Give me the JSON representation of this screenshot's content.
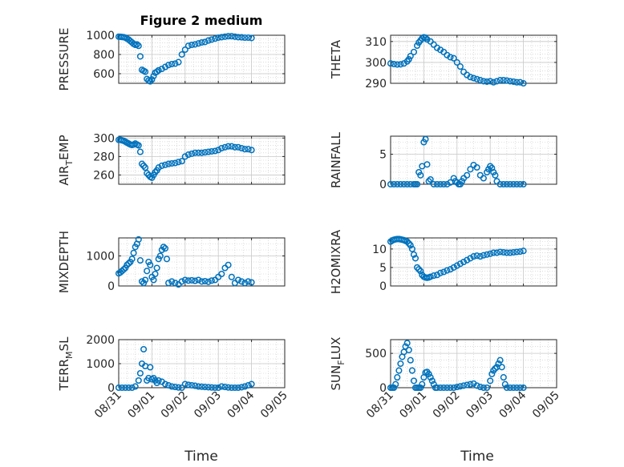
{
  "figure": {
    "title": "Figure 2 medium",
    "xlabel_left": "Time",
    "xlabel_right": "Time"
  },
  "colors": {
    "marker": "#0072BD",
    "axis": "#262626",
    "grid": "#c8c8c8"
  },
  "chart_data": [
    {
      "type": "scatter",
      "ylabel": "PRESSURE",
      "ylabel_parts": [
        "PRESSURE",
        "",
        ""
      ],
      "ylim": [
        500,
        1000
      ],
      "yticks": [
        600,
        800,
        1000
      ],
      "xlim": [
        0,
        5
      ],
      "xticks": [
        "08/31",
        "09/01",
        "09/02",
        "09/03",
        "09/04",
        "09/05"
      ],
      "x": [
        0.0,
        0.05,
        0.1,
        0.15,
        0.2,
        0.25,
        0.3,
        0.35,
        0.4,
        0.45,
        0.5,
        0.55,
        0.6,
        0.65,
        0.7,
        0.75,
        0.8,
        0.85,
        0.9,
        0.95,
        1.0,
        1.05,
        1.1,
        1.15,
        1.2,
        1.3,
        1.4,
        1.5,
        1.6,
        1.7,
        1.8,
        1.9,
        2.0,
        2.1,
        2.2,
        2.3,
        2.4,
        2.5,
        2.6,
        2.7,
        2.8,
        2.9,
        3.0,
        3.1,
        3.2,
        3.3,
        3.4,
        3.5,
        3.6,
        3.7,
        3.8,
        3.9,
        4.0
      ],
      "y": [
        985,
        984,
        982,
        980,
        975,
        965,
        955,
        940,
        925,
        910,
        900,
        905,
        890,
        780,
        640,
        630,
        620,
        545,
        530,
        520,
        540,
        575,
        610,
        620,
        635,
        650,
        670,
        690,
        700,
        705,
        720,
        800,
        850,
        890,
        900,
        905,
        915,
        925,
        930,
        945,
        955,
        965,
        975,
        980,
        985,
        990,
        990,
        985,
        980,
        978,
        975,
        975,
        972
      ]
    },
    {
      "type": "scatter",
      "ylabel": "THETA",
      "ylabel_parts": [
        "THETA",
        "",
        ""
      ],
      "ylim": [
        290,
        313
      ],
      "yticks": [
        290,
        300,
        310
      ],
      "xlim": [
        0,
        5
      ],
      "xticks": [
        "08/31",
        "09/01",
        "09/02",
        "09/03",
        "09/04",
        "09/05"
      ],
      "x": [
        0.0,
        0.1,
        0.2,
        0.3,
        0.4,
        0.5,
        0.55,
        0.6,
        0.7,
        0.8,
        0.85,
        0.9,
        0.95,
        1.0,
        1.05,
        1.1,
        1.2,
        1.3,
        1.4,
        1.5,
        1.6,
        1.7,
        1.8,
        1.9,
        2.0,
        2.1,
        2.2,
        2.3,
        2.4,
        2.5,
        2.6,
        2.7,
        2.8,
        2.9,
        3.0,
        3.1,
        3.2,
        3.3,
        3.4,
        3.5,
        3.6,
        3.7,
        3.8,
        3.9,
        4.0
      ],
      "y": [
        299.5,
        299.2,
        299,
        299.1,
        299.5,
        300.5,
        301.5,
        303,
        305,
        308,
        309.5,
        310.5,
        311.5,
        312,
        311.8,
        311,
        310,
        308.5,
        307,
        306,
        305,
        303.5,
        302.5,
        302,
        300,
        298,
        295.5,
        294,
        293,
        292.5,
        292,
        291.5,
        291,
        290.8,
        291,
        290.5,
        291,
        291.5,
        291.5,
        291.3,
        291,
        290.8,
        290.5,
        290.5,
        290
      ]
    },
    {
      "type": "scatter",
      "ylabel": "AIR_TEMP",
      "ylabel_parts": [
        "AIR",
        "T",
        "EMP"
      ],
      "ylim": [
        250,
        302
      ],
      "yticks": [
        260,
        280,
        300
      ],
      "xlim": [
        0,
        5
      ],
      "xticks": [
        "08/31",
        "09/01",
        "09/02",
        "09/03",
        "09/04",
        "09/05"
      ],
      "x": [
        0.0,
        0.05,
        0.1,
        0.15,
        0.2,
        0.25,
        0.3,
        0.35,
        0.4,
        0.45,
        0.5,
        0.55,
        0.6,
        0.65,
        0.7,
        0.75,
        0.8,
        0.85,
        0.9,
        0.95,
        1.0,
        1.05,
        1.1,
        1.15,
        1.2,
        1.3,
        1.4,
        1.5,
        1.6,
        1.7,
        1.8,
        1.9,
        2.0,
        2.1,
        2.2,
        2.3,
        2.4,
        2.5,
        2.6,
        2.7,
        2.8,
        2.9,
        3.0,
        3.1,
        3.2,
        3.3,
        3.4,
        3.5,
        3.6,
        3.7,
        3.8,
        3.9,
        4.0
      ],
      "y": [
        298,
        298,
        297.5,
        297,
        296,
        295,
        294,
        293,
        292.5,
        293,
        294,
        293,
        292,
        285,
        272,
        270,
        268,
        262,
        260,
        258,
        257,
        260,
        263,
        265,
        268,
        270,
        271,
        272,
        272.5,
        273,
        274,
        275,
        280,
        282,
        283,
        284,
        284,
        284,
        284.5,
        285,
        285.5,
        286,
        287,
        289,
        290,
        291,
        291,
        290,
        290,
        289,
        288,
        288,
        287
      ]
    },
    {
      "type": "scatter",
      "ylabel": "RAINFALL",
      "ylabel_parts": [
        "RAINFALL",
        "",
        ""
      ],
      "ylim": [
        0,
        8
      ],
      "yticks": [
        0,
        5
      ],
      "xlim": [
        0,
        5
      ],
      "xticks": [
        "08/31",
        "09/01",
        "09/02",
        "09/03",
        "09/04",
        "09/05"
      ],
      "x": [
        0.0,
        0.1,
        0.2,
        0.3,
        0.4,
        0.5,
        0.6,
        0.7,
        0.75,
        0.8,
        0.85,
        0.9,
        0.95,
        1.0,
        1.05,
        1.1,
        1.15,
        1.2,
        1.3,
        1.4,
        1.5,
        1.6,
        1.7,
        1.8,
        1.9,
        1.95,
        2.0,
        2.05,
        2.1,
        2.15,
        2.2,
        2.3,
        2.4,
        2.5,
        2.6,
        2.7,
        2.8,
        2.9,
        2.95,
        3.0,
        3.05,
        3.1,
        3.15,
        3.2,
        3.3,
        3.4,
        3.5,
        3.6,
        3.7,
        3.8,
        3.9,
        4.0
      ],
      "y": [
        0,
        0,
        0,
        0,
        0,
        0,
        0,
        0,
        0,
        0,
        2,
        1.5,
        3,
        7,
        7.5,
        3.3,
        0.5,
        0.8,
        0,
        0,
        0,
        0,
        0,
        0.3,
        1,
        0.5,
        0.3,
        0,
        0,
        0.5,
        1,
        1.5,
        2.5,
        3.2,
        2.8,
        1.5,
        1,
        2,
        2.5,
        3,
        2.7,
        2,
        1.5,
        0.5,
        0,
        0,
        0,
        0,
        0,
        0,
        0,
        0
      ]
    },
    {
      "type": "scatter",
      "ylabel": "MIXDEPTH",
      "ylabel_parts": [
        "MIXDEPTH",
        "",
        ""
      ],
      "ylim": [
        0,
        1600
      ],
      "yticks": [
        0,
        1000
      ],
      "xlim": [
        0,
        5
      ],
      "xticks": [
        "08/31",
        "09/01",
        "09/02",
        "09/03",
        "09/04",
        "09/05"
      ],
      "x": [
        0.0,
        0.05,
        0.1,
        0.15,
        0.2,
        0.25,
        0.3,
        0.35,
        0.4,
        0.45,
        0.5,
        0.55,
        0.6,
        0.65,
        0.7,
        0.75,
        0.8,
        0.85,
        0.9,
        0.95,
        1.0,
        1.05,
        1.1,
        1.15,
        1.2,
        1.25,
        1.3,
        1.35,
        1.4,
        1.45,
        1.5,
        1.6,
        1.7,
        1.8,
        1.9,
        2.0,
        2.1,
        2.2,
        2.3,
        2.4,
        2.5,
        2.6,
        2.7,
        2.8,
        2.9,
        3.0,
        3.1,
        3.2,
        3.3,
        3.4,
        3.5,
        3.6,
        3.7,
        3.8,
        3.9,
        4.0
      ],
      "y": [
        420,
        450,
        500,
        550,
        600,
        700,
        750,
        800,
        900,
        1100,
        1300,
        1400,
        1550,
        850,
        150,
        100,
        200,
        500,
        800,
        700,
        300,
        200,
        400,
        600,
        900,
        1000,
        1200,
        1300,
        1250,
        900,
        100,
        150,
        100,
        50,
        150,
        200,
        180,
        190,
        170,
        200,
        150,
        160,
        140,
        180,
        200,
        300,
        400,
        600,
        700,
        300,
        100,
        200,
        150,
        100,
        150,
        120
      ]
    },
    {
      "type": "scatter",
      "ylabel": "H2OMIXRA",
      "ylabel_parts": [
        "H2OMIXRA",
        "",
        ""
      ],
      "ylim": [
        0,
        13
      ],
      "yticks": [
        0,
        5,
        10
      ],
      "xlim": [
        0,
        5
      ],
      "xticks": [
        "08/31",
        "09/01",
        "09/02",
        "09/03",
        "09/04",
        "09/05"
      ],
      "x": [
        0.0,
        0.05,
        0.1,
        0.15,
        0.2,
        0.25,
        0.3,
        0.35,
        0.4,
        0.45,
        0.5,
        0.55,
        0.6,
        0.65,
        0.7,
        0.75,
        0.8,
        0.85,
        0.9,
        0.95,
        1.0,
        1.05,
        1.1,
        1.15,
        1.2,
        1.3,
        1.4,
        1.5,
        1.6,
        1.7,
        1.8,
        1.9,
        2.0,
        2.1,
        2.2,
        2.3,
        2.4,
        2.5,
        2.6,
        2.7,
        2.8,
        2.9,
        3.0,
        3.1,
        3.2,
        3.3,
        3.4,
        3.5,
        3.6,
        3.7,
        3.8,
        3.9,
        4.0
      ],
      "y": [
        12,
        12.3,
        12.5,
        12.6,
        12.7,
        12.7,
        12.6,
        12.5,
        12.4,
        12.2,
        12,
        11.5,
        11,
        10,
        8.5,
        7.5,
        5,
        4.5,
        4,
        3,
        2.5,
        2.3,
        2.2,
        2.3,
        2.5,
        2.8,
        3,
        3.5,
        3.8,
        4.2,
        4.5,
        5,
        5.5,
        6,
        6.5,
        7,
        7.5,
        8,
        8.2,
        8,
        8.3,
        8.5,
        8.7,
        9,
        9,
        9.2,
        9.1,
        9,
        9,
        9.1,
        9.2,
        9.3,
        9.5
      ]
    },
    {
      "type": "scatter",
      "ylabel": "TERR_MSL",
      "ylabel_parts": [
        "TERR",
        "M",
        "SL"
      ],
      "ylim": [
        0,
        2000
      ],
      "yticks": [
        0,
        1000,
        2000
      ],
      "xlim": [
        0,
        5
      ],
      "xticks": [
        "08/31",
        "09/01",
        "09/02",
        "09/03",
        "09/04",
        "09/05"
      ],
      "x": [
        0.0,
        0.1,
        0.2,
        0.3,
        0.4,
        0.5,
        0.6,
        0.65,
        0.7,
        0.75,
        0.8,
        0.85,
        0.9,
        0.95,
        1.0,
        1.05,
        1.1,
        1.15,
        1.2,
        1.3,
        1.4,
        1.5,
        1.6,
        1.7,
        1.8,
        1.9,
        2.0,
        2.1,
        2.2,
        2.3,
        2.4,
        2.5,
        2.6,
        2.7,
        2.8,
        2.9,
        3.0,
        3.1,
        3.2,
        3.3,
        3.4,
        3.5,
        3.6,
        3.7,
        3.8,
        3.9,
        4.0
      ],
      "y": [
        0,
        0,
        0,
        0,
        0,
        50,
        300,
        600,
        1000,
        1600,
        900,
        300,
        400,
        850,
        350,
        400,
        300,
        200,
        300,
        250,
        150,
        100,
        50,
        30,
        10,
        0,
        150,
        120,
        100,
        80,
        50,
        40,
        30,
        20,
        10,
        0,
        0,
        50,
        30,
        10,
        0,
        0,
        0,
        20,
        50,
        100,
        150
      ]
    },
    {
      "type": "scatter",
      "ylabel": "SUN_FLUX",
      "ylabel_parts": [
        "SUN",
        "F",
        "LUX"
      ],
      "ylim": [
        0,
        700
      ],
      "yticks": [
        0,
        500
      ],
      "xlim": [
        0,
        5
      ],
      "xticks": [
        "08/31",
        "09/01",
        "09/02",
        "09/03",
        "09/04",
        "09/05"
      ],
      "x": [
        0.0,
        0.05,
        0.1,
        0.15,
        0.2,
        0.25,
        0.3,
        0.35,
        0.4,
        0.45,
        0.5,
        0.55,
        0.6,
        0.65,
        0.7,
        0.75,
        0.8,
        0.85,
        0.9,
        0.95,
        1.0,
        1.05,
        1.1,
        1.15,
        1.2,
        1.25,
        1.3,
        1.35,
        1.4,
        1.5,
        1.6,
        1.7,
        1.8,
        1.9,
        2.0,
        2.1,
        2.2,
        2.3,
        2.4,
        2.5,
        2.6,
        2.7,
        2.8,
        2.9,
        3.0,
        3.05,
        3.1,
        3.15,
        3.2,
        3.25,
        3.3,
        3.35,
        3.4,
        3.45,
        3.5,
        3.6,
        3.7,
        3.8,
        3.9,
        4.0
      ],
      "y": [
        0,
        0,
        0,
        50,
        150,
        250,
        350,
        450,
        520,
        600,
        650,
        550,
        400,
        250,
        100,
        0,
        0,
        0,
        0,
        50,
        150,
        220,
        230,
        200,
        150,
        100,
        50,
        0,
        0,
        0,
        0,
        0,
        0,
        0,
        10,
        20,
        30,
        40,
        50,
        60,
        30,
        10,
        0,
        0,
        100,
        200,
        250,
        280,
        300,
        350,
        400,
        300,
        150,
        50,
        0,
        0,
        0,
        0,
        0,
        0
      ]
    }
  ]
}
